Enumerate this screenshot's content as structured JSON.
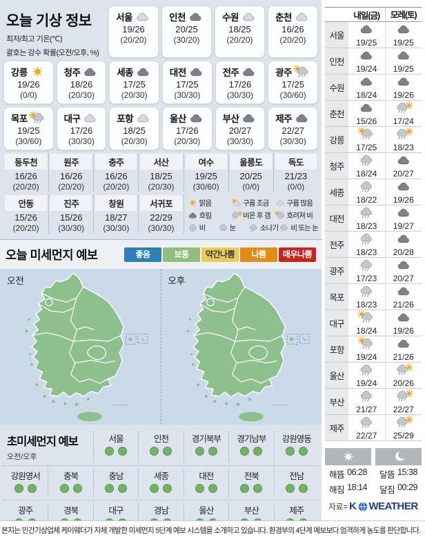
{
  "today": {
    "title": "오늘 기상 정보",
    "subtitle1": "최저/최고 기온(℃)",
    "subtitle2": "괄호는 강수 확률(오전/오후, %)",
    "cards_row1": [
      {
        "city": "서울",
        "icon": "cloud-light",
        "temp": "19/26",
        "prob": "(20/20)"
      },
      {
        "city": "인천",
        "icon": "cloud-dark",
        "temp": "20/25",
        "prob": "(30/20)"
      },
      {
        "city": "수원",
        "icon": "cloud-light",
        "temp": "18/25",
        "prob": "(20/20)"
      },
      {
        "city": "춘천",
        "icon": "cloud-light",
        "temp": "16/26",
        "prob": "(20/20)"
      }
    ],
    "cards_row2": [
      {
        "city": "강릉",
        "icon": "sun",
        "temp": "19/26",
        "prob": "(0/0)"
      },
      {
        "city": "청주",
        "icon": "cloud-dark",
        "temp": "18/26",
        "prob": "(20/30)"
      },
      {
        "city": "세종",
        "icon": "cloud-dark",
        "temp": "17/25",
        "prob": "(20/30)"
      },
      {
        "city": "대전",
        "icon": "cloud-dark",
        "temp": "17/25",
        "prob": "(30/30)"
      },
      {
        "city": "전주",
        "icon": "cloud-dark",
        "temp": "17/26",
        "prob": "(30/30)"
      },
      {
        "city": "광주",
        "icon": "sun-rain",
        "temp": "17/25",
        "prob": "(30/60)"
      }
    ],
    "cards_row3": [
      {
        "city": "목포",
        "icon": "sun-rain",
        "temp": "19/25",
        "prob": "(30/60)"
      },
      {
        "city": "대구",
        "icon": "cloud-light",
        "temp": "17/26",
        "prob": "(30/30)"
      },
      {
        "city": "포항",
        "icon": "cloud-light",
        "temp": "18/25",
        "prob": "(20/30)"
      },
      {
        "city": "울산",
        "icon": "cloud-dark",
        "temp": "17/26",
        "prob": "(20/30)"
      },
      {
        "city": "부산",
        "icon": "cloud-dark",
        "temp": "20/27",
        "prob": "(30/30)"
      },
      {
        "city": "제주",
        "icon": "cloud-dark",
        "temp": "22/27",
        "prob": "(30/30)"
      }
    ],
    "extra_row1": [
      {
        "city": "동두천",
        "temp": "16/26",
        "prob": "(20/20)"
      },
      {
        "city": "원주",
        "temp": "16/26",
        "prob": "(20/20)"
      },
      {
        "city": "충주",
        "temp": "16/26",
        "prob": "(20/20)"
      },
      {
        "city": "서산",
        "temp": "18/25",
        "prob": "(20/30)"
      },
      {
        "city": "여수",
        "temp": "19/25",
        "prob": "(30/60)"
      },
      {
        "city": "울릉도",
        "temp": "20/25",
        "prob": "(0/0)"
      },
      {
        "city": "독도",
        "temp": "21/23",
        "prob": "(0/0)"
      }
    ],
    "extra_row2": [
      {
        "city": "안동",
        "temp": "15/26",
        "prob": "(20/20)"
      },
      {
        "city": "진주",
        "temp": "15/26",
        "prob": "(30/30)"
      },
      {
        "city": "창원",
        "temp": "18/27",
        "prob": "(30/30)"
      },
      {
        "city": "서귀포",
        "temp": "22/29",
        "prob": "(30/30)"
      }
    ],
    "weather_legend": [
      [
        {
          "icon": "sun",
          "label": "맑음"
        },
        {
          "icon": "sun-cloud",
          "label": "구름 조금"
        },
        {
          "icon": "cloud-light",
          "label": "구름 많음"
        }
      ],
      [
        {
          "icon": "cloud-dark",
          "label": "흐림"
        },
        {
          "icon": "rain-sun",
          "label": "비온 후 갬"
        },
        {
          "icon": "sun-rain",
          "label": "흐려져 비"
        }
      ],
      [
        {
          "icon": "rain",
          "label": "비"
        },
        {
          "icon": "snow",
          "label": "눈"
        },
        {
          "icon": "shower",
          "label": "소나기"
        },
        {
          "icon": "rain-snow",
          "label": "비 또는 눈"
        }
      ]
    ]
  },
  "dust": {
    "title": "오늘 미세먼지 예보",
    "levels": [
      {
        "label": "좋음",
        "bg": "#2e7fb8",
        "fg": "#ffffff"
      },
      {
        "label": "보통",
        "bg": "#90bf7d",
        "fg": "#ffffff"
      },
      {
        "label": "약간나쁨",
        "bg": "#ecca57",
        "fg": "#3a3a3a"
      },
      {
        "label": "나쁨",
        "bg": "#df8d15",
        "fg": "#ffffff"
      },
      {
        "label": "매우나쁨",
        "bg": "#c9241e",
        "fg": "#ffffff"
      }
    ],
    "maps": [
      {
        "label": "오전",
        "level": "보통"
      },
      {
        "label": "오후",
        "level": "보통"
      }
    ],
    "land_color": "#8dc08d",
    "sea_color": "#cbdae9"
  },
  "fine_dust": {
    "title": "초미세먼지 예보",
    "subtitle": "오전/오후",
    "level_colors": {
      "보통": "#6fb463"
    },
    "rows": [
      [
        {
          "name": "서울",
          "levels": [
            "보통",
            "보통"
          ]
        },
        {
          "name": "인천",
          "levels": [
            "보통",
            "보통"
          ]
        },
        {
          "name": "경기북부",
          "levels": [
            "보통",
            "보통"
          ]
        },
        {
          "name": "경기남부",
          "levels": [
            "보통",
            "보통"
          ]
        },
        {
          "name": "강원영동",
          "levels": [
            "보통",
            "보통"
          ]
        }
      ],
      [
        {
          "name": "강원영서",
          "levels": [
            "보통",
            "보통"
          ]
        },
        {
          "name": "충북",
          "levels": [
            "보통",
            "보통"
          ]
        },
        {
          "name": "충남",
          "levels": [
            "보통",
            "보통"
          ]
        },
        {
          "name": "세종",
          "levels": [
            "보통",
            "보통"
          ]
        },
        {
          "name": "대전",
          "levels": [
            "보통",
            "보통"
          ]
        },
        {
          "name": "전북",
          "levels": [
            "보통",
            "보통"
          ]
        },
        {
          "name": "전남",
          "levels": [
            "보통",
            "보통"
          ]
        }
      ],
      [
        {
          "name": "광주",
          "levels": [
            "보통",
            "보통"
          ]
        },
        {
          "name": "경북",
          "levels": [
            "보통",
            "보통"
          ]
        },
        {
          "name": "대구",
          "levels": [
            "보통",
            "보통"
          ]
        },
        {
          "name": "경남",
          "levels": [
            "보통",
            "보통"
          ]
        },
        {
          "name": "울산",
          "levels": [
            "보통",
            "보통"
          ]
        },
        {
          "name": "부산",
          "levels": [
            "보통",
            "보통"
          ]
        },
        {
          "name": "제주",
          "levels": [
            "보통",
            "보통"
          ]
        }
      ]
    ]
  },
  "forecast": {
    "col1": "내일(금)",
    "col2": "모레(토)",
    "rows": [
      {
        "city": "서울",
        "d1": {
          "icon": "cloud-dark",
          "temp": "19/25"
        },
        "d2": {
          "icon": "cloud-dark",
          "temp": "19/25"
        }
      },
      {
        "city": "인천",
        "d1": {
          "icon": "cloud-dark",
          "temp": "19/24"
        },
        "d2": {
          "icon": "cloud-dark",
          "temp": "19/25"
        }
      },
      {
        "city": "수원",
        "d1": {
          "icon": "cloud-dark",
          "temp": "18/24"
        },
        "d2": {
          "icon": "cloud-dark",
          "temp": "19/26"
        }
      },
      {
        "city": "춘천",
        "d1": {
          "icon": "cloud-dark",
          "temp": "15/26"
        },
        "d2": {
          "icon": "rain-sun",
          "temp": "17/24"
        }
      },
      {
        "city": "강릉",
        "d1": {
          "icon": "sun-rain",
          "temp": "17/25"
        },
        "d2": {
          "icon": "rain-sun",
          "temp": "18/23"
        }
      },
      {
        "city": "청주",
        "d1": {
          "icon": "rain",
          "temp": "18/24"
        },
        "d2": {
          "icon": "cloud-dark",
          "temp": "20/27"
        }
      },
      {
        "city": "세종",
        "d1": {
          "icon": "rain",
          "temp": "18/22"
        },
        "d2": {
          "icon": "cloud-dark",
          "temp": "19/26"
        }
      },
      {
        "city": "대전",
        "d1": {
          "icon": "rain",
          "temp": "18/23"
        },
        "d2": {
          "icon": "cloud-dark",
          "temp": "19/27"
        }
      },
      {
        "city": "전주",
        "d1": {
          "icon": "rain",
          "temp": "18/23"
        },
        "d2": {
          "icon": "cloud-dark",
          "temp": "20/28"
        }
      },
      {
        "city": "광주",
        "d1": {
          "icon": "rain",
          "temp": "17/23"
        },
        "d2": {
          "icon": "cloud-dark",
          "temp": "20/27"
        }
      },
      {
        "city": "목포",
        "d1": {
          "icon": "rain",
          "temp": "18/23"
        },
        "d2": {
          "icon": "cloud-dark",
          "temp": "21/26"
        }
      },
      {
        "city": "대구",
        "d1": {
          "icon": "sun-rain",
          "temp": "18/24"
        },
        "d2": {
          "icon": "cloud-dark",
          "temp": "19/26"
        }
      },
      {
        "city": "포항",
        "d1": {
          "icon": "sun-rain",
          "temp": "19/24"
        },
        "d2": {
          "icon": "cloud-dark",
          "temp": "21/26"
        }
      },
      {
        "city": "울산",
        "d1": {
          "icon": "rain",
          "temp": "19/24"
        },
        "d2": {
          "icon": "rain-sun",
          "temp": "20/26"
        }
      },
      {
        "city": "부산",
        "d1": {
          "icon": "rain",
          "temp": "21/27"
        },
        "d2": {
          "icon": "rain-sun",
          "temp": "22/27"
        }
      },
      {
        "city": "제주",
        "d1": {
          "icon": "rain",
          "temp": "22/27"
        },
        "d2": {
          "icon": "rain-sun",
          "temp": "25/29"
        }
      }
    ]
  },
  "astro": {
    "sun_rows": [
      {
        "label": "해뜸",
        "time": "06:28"
      },
      {
        "label": "해짐",
        "time": "18:14"
      }
    ],
    "moon_rows": [
      {
        "label": "달뜸",
        "time": "15:38"
      },
      {
        "label": "달짐",
        "time": "00:29"
      }
    ]
  },
  "source": {
    "prefix": "자료=",
    "brand_k": "K",
    "brand_rest": "WEATHER"
  },
  "footer": {
    "text": "본지는 민간기상업체 케이웨더가 자체 개발한 미세먼지 5단계 예보 시스템을 소개하고 있습니다. 환경부의 4단계 예보보다 엄격하게 농도를 판단합니다."
  }
}
